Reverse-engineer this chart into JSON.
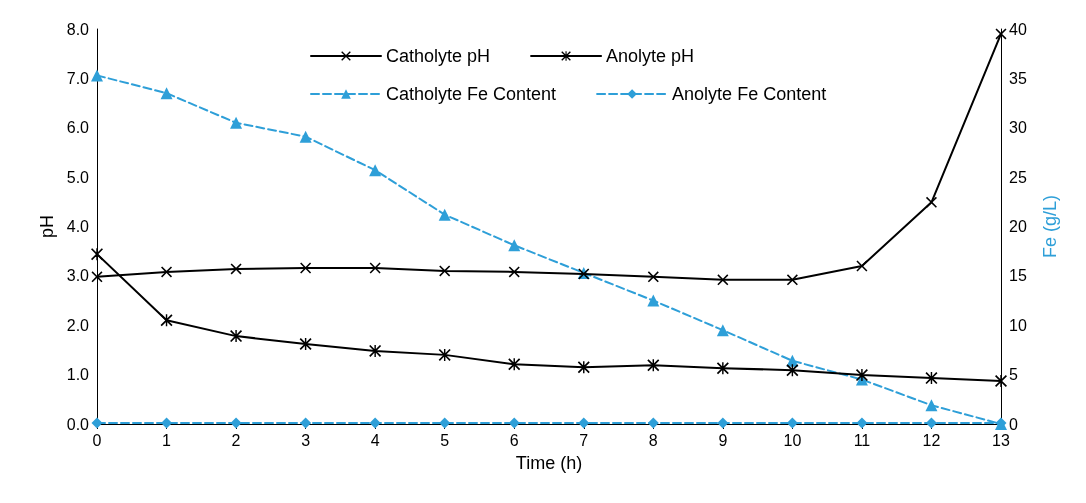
{
  "chart_data": {
    "type": "line",
    "xlabel": "Time (h)",
    "ylabel": "pH",
    "y2label": "Fe (g/L)",
    "x": [
      0,
      1,
      2,
      3,
      4,
      5,
      6,
      7,
      8,
      9,
      10,
      11,
      12,
      13
    ],
    "xlim": [
      0,
      13
    ],
    "xticks": [
      0,
      1,
      2,
      3,
      4,
      5,
      6,
      7,
      8,
      9,
      10,
      11,
      12,
      13
    ],
    "ylim": [
      0,
      8
    ],
    "yticks": [
      {
        "value": 0,
        "label": "0.0"
      },
      {
        "value": 1,
        "label": "1.0"
      },
      {
        "value": 2,
        "label": "2.0"
      },
      {
        "value": 3,
        "label": "3.0"
      },
      {
        "value": 4,
        "label": "4.0"
      },
      {
        "value": 5,
        "label": "5.0"
      },
      {
        "value": 6,
        "label": "6.0"
      },
      {
        "value": 7,
        "label": "7.0"
      },
      {
        "value": 8,
        "label": "8.0"
      }
    ],
    "y2lim": [
      0,
      40
    ],
    "y2ticks": [
      0,
      5,
      10,
      15,
      20,
      25,
      30,
      35,
      40
    ],
    "grid": false,
    "legend": "top",
    "series": [
      {
        "name": "Catholyte pH",
        "color": "#000000",
        "marker": "cross",
        "line_style": "solid",
        "values": [
          2.98,
          3.08,
          3.14,
          3.16,
          3.16,
          3.1,
          3.08,
          3.04,
          2.98,
          2.92,
          2.92,
          3.2,
          4.49,
          7.9
        ]
      },
      {
        "name": "Anolyte pH",
        "color": "#000000",
        "marker": "star",
        "line_style": "solid",
        "values": [
          3.44,
          2.1,
          1.78,
          1.62,
          1.48,
          1.4,
          1.21,
          1.15,
          1.19,
          1.13,
          1.09,
          0.99,
          0.93,
          0.87
        ]
      },
      {
        "name": "Catholyte Fe Content",
        "color": "#2e9fd8",
        "marker": "triangle",
        "line_style": "dashed",
        "axis": "y2",
        "values": [
          35.3,
          33.5,
          30.5,
          29.1,
          25.7,
          21.2,
          18.1,
          15.3,
          12.5,
          9.5,
          6.4,
          4.5,
          1.9,
          0
        ]
      },
      {
        "name": "Anolyte Fe Content",
        "color": "#2e9fd8",
        "marker": "diamond",
        "line_style": "dashed",
        "axis": "y2",
        "values": [
          0.1,
          0.1,
          0.1,
          0.1,
          0.1,
          0.1,
          0.1,
          0.1,
          0.1,
          0.1,
          0.1,
          0.1,
          0.1,
          0.1
        ]
      }
    ]
  }
}
